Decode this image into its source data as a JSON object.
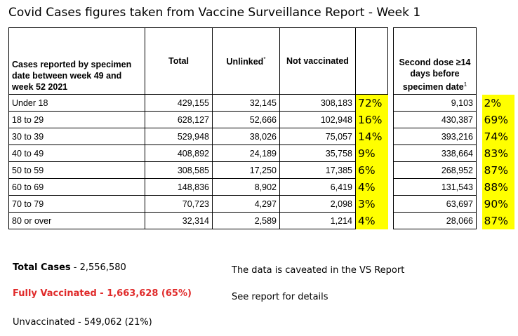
{
  "title": "Covid Cases figures taken from Vaccine Surveillance Report - Week 1",
  "table": {
    "headers": {
      "cases": "Cases reported by specimen date between week 49 and week 52 2021",
      "total": "Total",
      "unlinked": "Unlinked",
      "unlinked_sup": "*",
      "not_vaccinated": "Not vaccinated",
      "second_dose": "Second dose ≥14 days before specimen date",
      "second_dose_sup": "1"
    },
    "rows": [
      {
        "age": "Under 18",
        "total": "429,155",
        "unlinked": "32,145",
        "not_vaccinated": "308,183",
        "not_vacc_pct": "72%",
        "second_dose": "9,103",
        "second_dose_pct": "2%"
      },
      {
        "age": "18 to 29",
        "total": "628,127",
        "unlinked": "52,666",
        "not_vaccinated": "102,948",
        "not_vacc_pct": "16%",
        "second_dose": "430,387",
        "second_dose_pct": "69%"
      },
      {
        "age": "30 to 39",
        "total": "529,948",
        "unlinked": "38,026",
        "not_vaccinated": "75,057",
        "not_vacc_pct": "14%",
        "second_dose": "393,216",
        "second_dose_pct": "74%"
      },
      {
        "age": "40 to 49",
        "total": "408,892",
        "unlinked": "24,189",
        "not_vaccinated": "35,758",
        "not_vacc_pct": "9%",
        "second_dose": "338,664",
        "second_dose_pct": "83%"
      },
      {
        "age": "50 to 59",
        "total": "308,585",
        "unlinked": "17,250",
        "not_vaccinated": "17,385",
        "not_vacc_pct": "6%",
        "second_dose": "268,952",
        "second_dose_pct": "87%"
      },
      {
        "age": "60 to 69",
        "total": "148,836",
        "unlinked": "8,902",
        "not_vaccinated": "6,419",
        "not_vacc_pct": "4%",
        "second_dose": "131,543",
        "second_dose_pct": "88%"
      },
      {
        "age": "70 to 79",
        "total": "70,723",
        "unlinked": "4,297",
        "not_vaccinated": "2,098",
        "not_vacc_pct": "3%",
        "second_dose": "63,697",
        "second_dose_pct": "90%"
      },
      {
        "age": "80 or over",
        "total": "32,314",
        "unlinked": "2,589",
        "not_vaccinated": "1,214",
        "not_vacc_pct": "4%",
        "second_dose": "28,066",
        "second_dose_pct": "87%"
      }
    ]
  },
  "summary": {
    "total_label": "Total Cases",
    "total_value": " - 2,556,580",
    "vaccinated": "Fully Vaccinated - 1,663,628  (65%)",
    "unvaccinated": "Unvaccinated - 549,062 (21%)",
    "note1": "The data is caveated in the VS Report",
    "note2": "See report for details"
  },
  "colors": {
    "highlight": "#ffff00",
    "vaccinated_text": "#e02a2a"
  }
}
